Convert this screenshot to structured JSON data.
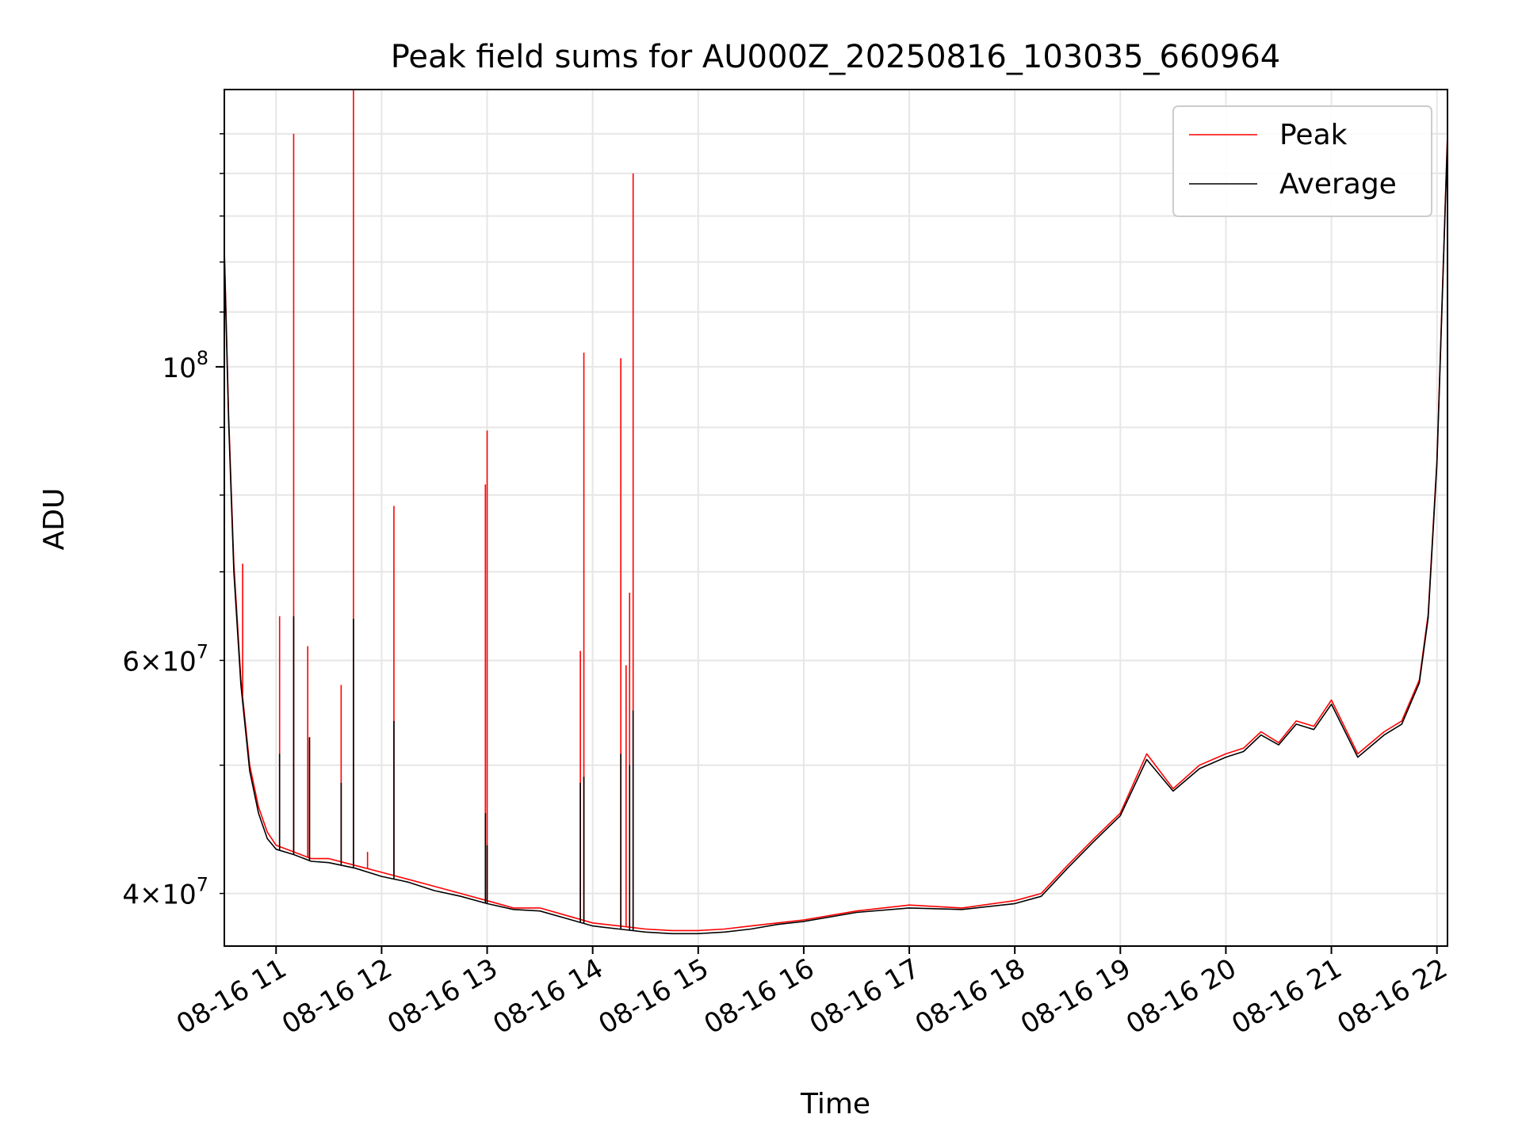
{
  "chart_data": {
    "type": "line",
    "title": "Peak field sums for AU000Z_20250816_103035_660964",
    "xlabel": "Time",
    "ylabel": "ADU",
    "yscale": "log",
    "grid": true,
    "legend_position": "top-right",
    "x_range": [
      "2025-08-16 10:30:35",
      "2025-08-16 22:06:00"
    ],
    "ylim": [
      36500000,
      162000000
    ],
    "x_ticks": [
      {
        "value": "2025-08-16 11:00",
        "label": "08-16 11"
      },
      {
        "value": "2025-08-16 12:00",
        "label": "08-16 12"
      },
      {
        "value": "2025-08-16 13:00",
        "label": "08-16 13"
      },
      {
        "value": "2025-08-16 14:00",
        "label": "08-16 14"
      },
      {
        "value": "2025-08-16 15:00",
        "label": "08-16 15"
      },
      {
        "value": "2025-08-16 16:00",
        "label": "08-16 16"
      },
      {
        "value": "2025-08-16 17:00",
        "label": "08-16 17"
      },
      {
        "value": "2025-08-16 18:00",
        "label": "08-16 18"
      },
      {
        "value": "2025-08-16 19:00",
        "label": "08-16 19"
      },
      {
        "value": "2025-08-16 20:00",
        "label": "08-16 20"
      },
      {
        "value": "2025-08-16 21:00",
        "label": "08-16 21"
      },
      {
        "value": "2025-08-16 22:00",
        "label": "08-16 22"
      }
    ],
    "y_major_ticks": [
      {
        "value": 100000000,
        "base": "10",
        "exp": "8"
      }
    ],
    "y_minor_ticks": [
      {
        "value": 40000000,
        "mant": "4",
        "base": "10",
        "exp": "7"
      },
      {
        "value": 60000000,
        "mant": "6",
        "base": "10",
        "exp": "7"
      }
    ],
    "series": [
      {
        "name": "Peak",
        "color": "#ff0000",
        "x": [
          "2025-08-16 10:30:35",
          "2025-08-16 10:33",
          "2025-08-16 10:36",
          "2025-08-16 10:40",
          "2025-08-16 10:45",
          "2025-08-16 10:50",
          "2025-08-16 10:55",
          "2025-08-16 11:00",
          "2025-08-16 11:10",
          "2025-08-16 11:20",
          "2025-08-16 11:30",
          "2025-08-16 11:45",
          "2025-08-16 12:00",
          "2025-08-16 12:15",
          "2025-08-16 12:30",
          "2025-08-16 12:45",
          "2025-08-16 13:00",
          "2025-08-16 13:15",
          "2025-08-16 13:30",
          "2025-08-16 13:45",
          "2025-08-16 14:00",
          "2025-08-16 14:15",
          "2025-08-16 14:30",
          "2025-08-16 14:45",
          "2025-08-16 15:00",
          "2025-08-16 15:15",
          "2025-08-16 15:30",
          "2025-08-16 15:45",
          "2025-08-16 16:00",
          "2025-08-16 16:30",
          "2025-08-16 17:00",
          "2025-08-16 17:30",
          "2025-08-16 18:00",
          "2025-08-16 18:15",
          "2025-08-16 18:30",
          "2025-08-16 18:45",
          "2025-08-16 19:00",
          "2025-08-16 19:15",
          "2025-08-16 19:30",
          "2025-08-16 19:45",
          "2025-08-16 20:00",
          "2025-08-16 20:10",
          "2025-08-16 20:20",
          "2025-08-16 20:30",
          "2025-08-16 20:40",
          "2025-08-16 20:50",
          "2025-08-16 21:00",
          "2025-08-16 21:15",
          "2025-08-16 21:30",
          "2025-08-16 21:40",
          "2025-08-16 21:50",
          "2025-08-16 21:55",
          "2025-08-16 22:00",
          "2025-08-16 22:06"
        ],
        "y": [
          123000000,
          92000000,
          71000000,
          58000000,
          50000000,
          46500000,
          44500000,
          43500000,
          43000000,
          42500000,
          42500000,
          42000000,
          41500000,
          41000000,
          40500000,
          40000000,
          39500000,
          39000000,
          39000000,
          38500000,
          38000000,
          37800000,
          37600000,
          37500000,
          37500000,
          37600000,
          37800000,
          38000000,
          38200000,
          38800000,
          39200000,
          39000000,
          39500000,
          40000000,
          42000000,
          44000000,
          46000000,
          51000000,
          48000000,
          50000000,
          51000000,
          51500000,
          53000000,
          52000000,
          54000000,
          53500000,
          56000000,
          51000000,
          53000000,
          54000000,
          58000000,
          65000000,
          85000000,
          150000000
        ],
        "spikes": [
          {
            "x": "2025-08-16 10:41",
            "y": 71000000
          },
          {
            "x": "2025-08-16 11:02",
            "y": 64800000
          },
          {
            "x": "2025-08-16 11:10",
            "y": 150000000
          },
          {
            "x": "2025-08-16 11:18",
            "y": 61500000
          },
          {
            "x": "2025-08-16 11:19",
            "y": 52500000
          },
          {
            "x": "2025-08-16 11:37",
            "y": 57500000
          },
          {
            "x": "2025-08-16 11:44",
            "y": 162000000
          },
          {
            "x": "2025-08-16 11:52",
            "y": 43000000
          },
          {
            "x": "2025-08-16 12:07",
            "y": 78500000
          },
          {
            "x": "2025-08-16 12:59",
            "y": 81500000
          },
          {
            "x": "2025-08-16 13:00",
            "y": 89500000
          },
          {
            "x": "2025-08-16 13:53",
            "y": 61000000
          },
          {
            "x": "2025-08-16 13:55",
            "y": 102500000
          },
          {
            "x": "2025-08-16 14:16",
            "y": 101500000
          },
          {
            "x": "2025-08-16 14:19",
            "y": 59500000
          },
          {
            "x": "2025-08-16 14:21",
            "y": 67500000
          },
          {
            "x": "2025-08-16 14:23",
            "y": 140000000
          }
        ]
      },
      {
        "name": "Average",
        "color": "#000000",
        "x": [
          "2025-08-16 10:30:35",
          "2025-08-16 10:33",
          "2025-08-16 10:36",
          "2025-08-16 10:40",
          "2025-08-16 10:45",
          "2025-08-16 10:50",
          "2025-08-16 10:55",
          "2025-08-16 11:00",
          "2025-08-16 11:10",
          "2025-08-16 11:20",
          "2025-08-16 11:30",
          "2025-08-16 11:45",
          "2025-08-16 12:00",
          "2025-08-16 12:15",
          "2025-08-16 12:30",
          "2025-08-16 12:45",
          "2025-08-16 13:00",
          "2025-08-16 13:15",
          "2025-08-16 13:30",
          "2025-08-16 13:45",
          "2025-08-16 14:00",
          "2025-08-16 14:15",
          "2025-08-16 14:30",
          "2025-08-16 14:45",
          "2025-08-16 15:00",
          "2025-08-16 15:15",
          "2025-08-16 15:30",
          "2025-08-16 15:45",
          "2025-08-16 16:00",
          "2025-08-16 16:30",
          "2025-08-16 17:00",
          "2025-08-16 17:30",
          "2025-08-16 18:00",
          "2025-08-16 18:15",
          "2025-08-16 18:30",
          "2025-08-16 18:45",
          "2025-08-16 19:00",
          "2025-08-16 19:15",
          "2025-08-16 19:30",
          "2025-08-16 19:45",
          "2025-08-16 20:00",
          "2025-08-16 20:10",
          "2025-08-16 20:20",
          "2025-08-16 20:30",
          "2025-08-16 20:40",
          "2025-08-16 20:50",
          "2025-08-16 21:00",
          "2025-08-16 21:15",
          "2025-08-16 21:30",
          "2025-08-16 21:40",
          "2025-08-16 21:50",
          "2025-08-16 21:55",
          "2025-08-16 22:00",
          "2025-08-16 22:06"
        ],
        "y": [
          122000000,
          91000000,
          70000000,
          57500000,
          49500000,
          46000000,
          44000000,
          43200000,
          42800000,
          42300000,
          42200000,
          41800000,
          41200000,
          40800000,
          40200000,
          39800000,
          39300000,
          38900000,
          38800000,
          38300000,
          37800000,
          37600000,
          37400000,
          37300000,
          37300000,
          37400000,
          37600000,
          37900000,
          38100000,
          38700000,
          39000000,
          38900000,
          39300000,
          39800000,
          41800000,
          43800000,
          45800000,
          50500000,
          47800000,
          49700000,
          50700000,
          51200000,
          52700000,
          51800000,
          53700000,
          53200000,
          55600000,
          50700000,
          52700000,
          53700000,
          57700000,
          64600000,
          84500000,
          149000000
        ],
        "spikes": [
          {
            "x": "2025-08-16 11:02",
            "y": 51000000
          },
          {
            "x": "2025-08-16 11:10",
            "y": 64800000
          },
          {
            "x": "2025-08-16 11:19",
            "y": 52500000
          },
          {
            "x": "2025-08-16 11:37",
            "y": 48500000
          },
          {
            "x": "2025-08-16 11:44",
            "y": 64500000
          },
          {
            "x": "2025-08-16 12:07",
            "y": 54000000
          },
          {
            "x": "2025-08-16 12:59",
            "y": 46000000
          },
          {
            "x": "2025-08-16 13:00",
            "y": 43500000
          },
          {
            "x": "2025-08-16 13:53",
            "y": 48500000
          },
          {
            "x": "2025-08-16 13:55",
            "y": 49000000
          },
          {
            "x": "2025-08-16 14:16",
            "y": 51000000
          },
          {
            "x": "2025-08-16 14:21",
            "y": 50000000
          },
          {
            "x": "2025-08-16 14:23",
            "y": 55000000
          }
        ]
      }
    ]
  }
}
